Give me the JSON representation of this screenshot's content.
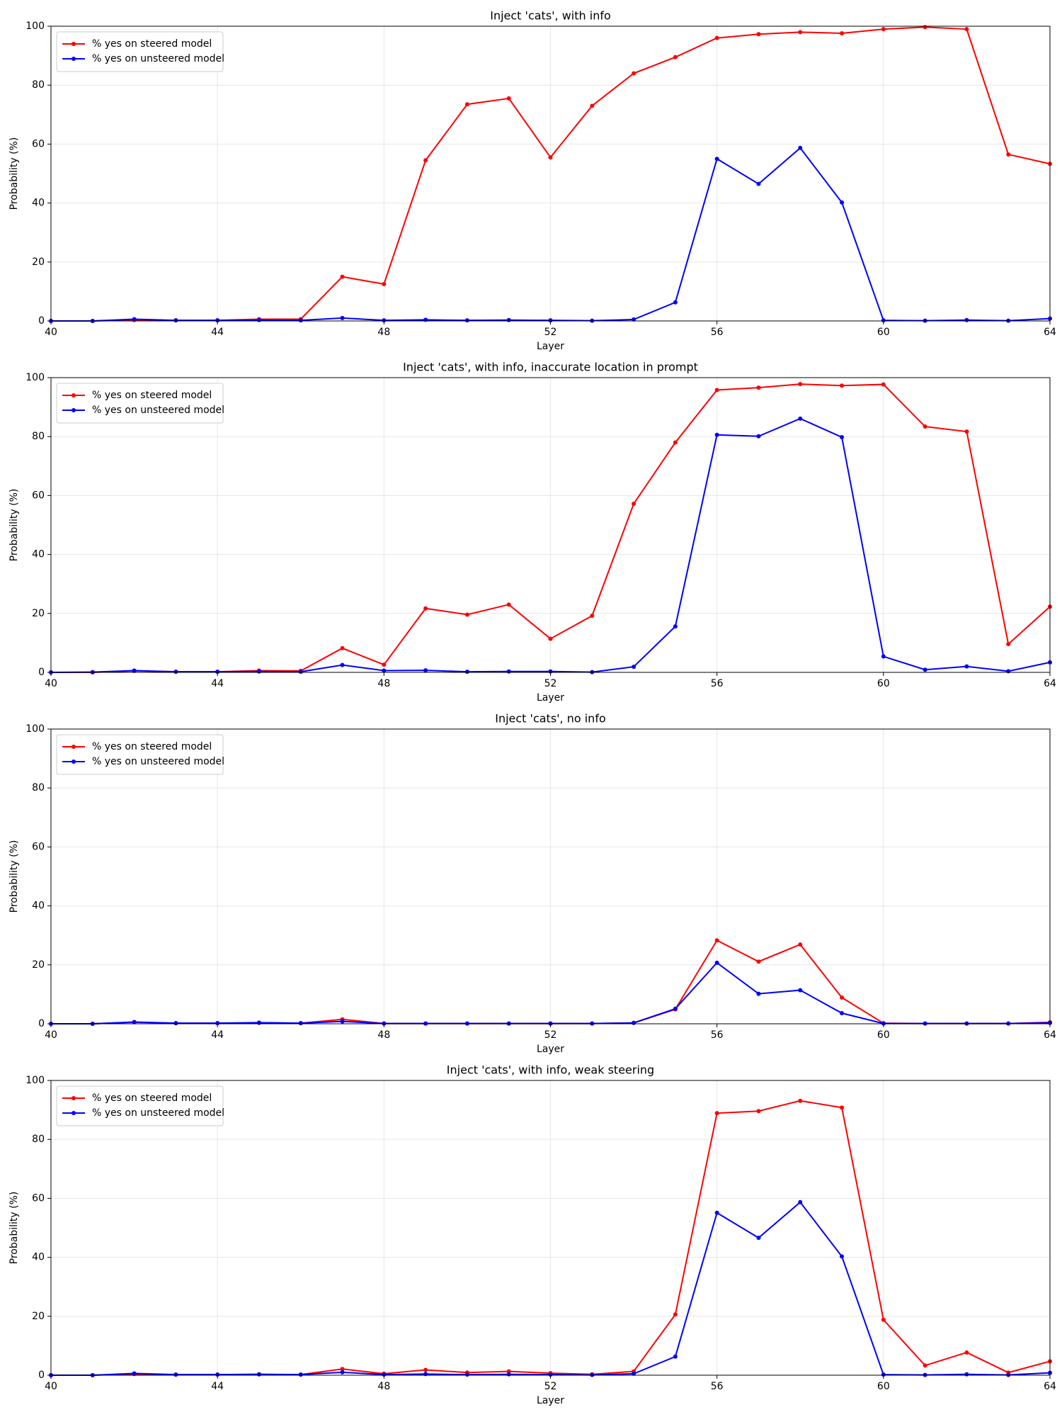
{
  "chart_data": [
    {
      "type": "line",
      "title": "Inject 'cats', with info",
      "x_label": "Layer",
      "y_label": "Probability (%)",
      "x": [
        40,
        41,
        42,
        43,
        44,
        45,
        46,
        47,
        48,
        49,
        50,
        51,
        52,
        53,
        54,
        55,
        56,
        57,
        58,
        59,
        60,
        61,
        62,
        63,
        64
      ],
      "series": [
        {
          "name": "% yes on steered model",
          "color": "#ff0000",
          "values": [
            0,
            0,
            0.3,
            0.2,
            0.2,
            0.6,
            0.6,
            15,
            12.5,
            54.5,
            73.5,
            75.5,
            55.5,
            73,
            84,
            89.5,
            96,
            97.3,
            98,
            97.6,
            99,
            99.7,
            99,
            56.5,
            53.3
          ]
        },
        {
          "name": "% yes on unsteered model",
          "color": "#0000ff",
          "values": [
            0,
            0,
            0.6,
            0.2,
            0.2,
            0.3,
            0.2,
            1,
            0.2,
            0.4,
            0.2,
            0.3,
            0.2,
            0.1,
            0.5,
            6.3,
            55,
            46.5,
            58.7,
            40.2,
            0.2,
            0.1,
            0.3,
            0.1,
            0.8
          ]
        }
      ],
      "xlim": [
        40,
        64
      ],
      "xticks": [
        40,
        44,
        48,
        52,
        56,
        60,
        64
      ],
      "ylim": [
        0,
        100
      ],
      "yticks": [
        0,
        20,
        40,
        60,
        80,
        100
      ],
      "grid": true,
      "legend": "upper left"
    },
    {
      "type": "line",
      "title": "Inject 'cats', with info, inaccurate location in prompt",
      "x_label": "Layer",
      "y_label": "Probability (%)",
      "x": [
        40,
        41,
        42,
        43,
        44,
        45,
        46,
        47,
        48,
        49,
        50,
        51,
        52,
        53,
        54,
        55,
        56,
        57,
        58,
        59,
        60,
        61,
        62,
        63,
        64
      ],
      "series": [
        {
          "name": "% yes on steered model",
          "color": "#ff0000",
          "values": [
            0,
            0,
            0.5,
            0.2,
            0.2,
            0.6,
            0.5,
            8.2,
            2.6,
            21.7,
            19.6,
            23,
            11.4,
            19.2,
            57.2,
            78,
            95.8,
            96.6,
            97.8,
            97.3,
            97.7,
            83.4,
            81.7,
            9.6,
            22.3
          ]
        },
        {
          "name": "% yes on unsteered model",
          "color": "#0000ff",
          "values": [
            0,
            0.1,
            0.6,
            0.2,
            0.2,
            0.3,
            0.2,
            2.5,
            0.6,
            0.7,
            0.2,
            0.3,
            0.3,
            0.1,
            1.9,
            15.6,
            80.6,
            80.1,
            86.1,
            79.8,
            5.4,
            0.9,
            2,
            0.4,
            3.4
          ]
        }
      ],
      "xlim": [
        40,
        64
      ],
      "xticks": [
        40,
        44,
        48,
        52,
        56,
        60,
        64
      ],
      "ylim": [
        0,
        100
      ],
      "yticks": [
        0,
        20,
        40,
        60,
        80,
        100
      ],
      "grid": true,
      "legend": "upper left"
    },
    {
      "type": "line",
      "title": "Inject 'cats', no info",
      "x_label": "Layer",
      "y_label": "Probability (%)",
      "x": [
        40,
        41,
        42,
        43,
        44,
        45,
        46,
        47,
        48,
        49,
        50,
        51,
        52,
        53,
        54,
        55,
        56,
        57,
        58,
        59,
        60,
        61,
        62,
        63,
        64
      ],
      "series": [
        {
          "name": "% yes on steered model",
          "color": "#ff0000",
          "values": [
            0,
            0,
            0.5,
            0.2,
            0.2,
            0.3,
            0.2,
            1.5,
            0.1,
            0.1,
            0.1,
            0.1,
            0.1,
            0.1,
            0.3,
            4.9,
            28.3,
            21.1,
            26.9,
            8.9,
            0.2,
            0.1,
            0.1,
            0.1,
            0.5
          ]
        },
        {
          "name": "% yes on unsteered model",
          "color": "#0000ff",
          "values": [
            0,
            0,
            0.6,
            0.2,
            0.2,
            0.4,
            0.2,
            0.8,
            0.1,
            0.1,
            0.1,
            0.1,
            0.1,
            0.1,
            0.3,
            5.1,
            20.7,
            10.2,
            11.4,
            3.6,
            0.1,
            0.1,
            0.1,
            0.1,
            0.3
          ]
        }
      ],
      "xlim": [
        40,
        64
      ],
      "xticks": [
        40,
        44,
        48,
        52,
        56,
        60,
        64
      ],
      "ylim": [
        0,
        100
      ],
      "yticks": [
        0,
        20,
        40,
        60,
        80,
        100
      ],
      "grid": true,
      "legend": "upper left"
    },
    {
      "type": "line",
      "title": "Inject 'cats', with info, weak steering",
      "x_label": "Layer",
      "y_label": "Probability (%)",
      "x": [
        40,
        41,
        42,
        43,
        44,
        45,
        46,
        47,
        48,
        49,
        50,
        51,
        52,
        53,
        54,
        55,
        56,
        57,
        58,
        59,
        60,
        61,
        62,
        63,
        64
      ],
      "series": [
        {
          "name": "% yes on steered model",
          "color": "#ff0000",
          "values": [
            0,
            0,
            0.4,
            0.2,
            0.2,
            0.3,
            0.2,
            2.1,
            0.5,
            1.8,
            0.9,
            1.3,
            0.7,
            0.3,
            1.3,
            20.6,
            88.9,
            89.6,
            93.1,
            90.8,
            18.8,
            3.3,
            7.7,
            0.9,
            4.7
          ]
        },
        {
          "name": "% yes on unsteered model",
          "color": "#0000ff",
          "values": [
            0,
            0,
            0.6,
            0.2,
            0.2,
            0.3,
            0.2,
            1,
            0.2,
            0.4,
            0.2,
            0.3,
            0.2,
            0.1,
            0.5,
            6.3,
            55.1,
            46.6,
            58.7,
            40.3,
            0.2,
            0.1,
            0.3,
            0.1,
            0.8
          ]
        }
      ],
      "xlim": [
        40,
        64
      ],
      "xticks": [
        40,
        44,
        48,
        52,
        56,
        60,
        64
      ],
      "ylim": [
        0,
        100
      ],
      "yticks": [
        0,
        20,
        40,
        60,
        80,
        100
      ],
      "grid": true,
      "legend": "upper left"
    }
  ]
}
